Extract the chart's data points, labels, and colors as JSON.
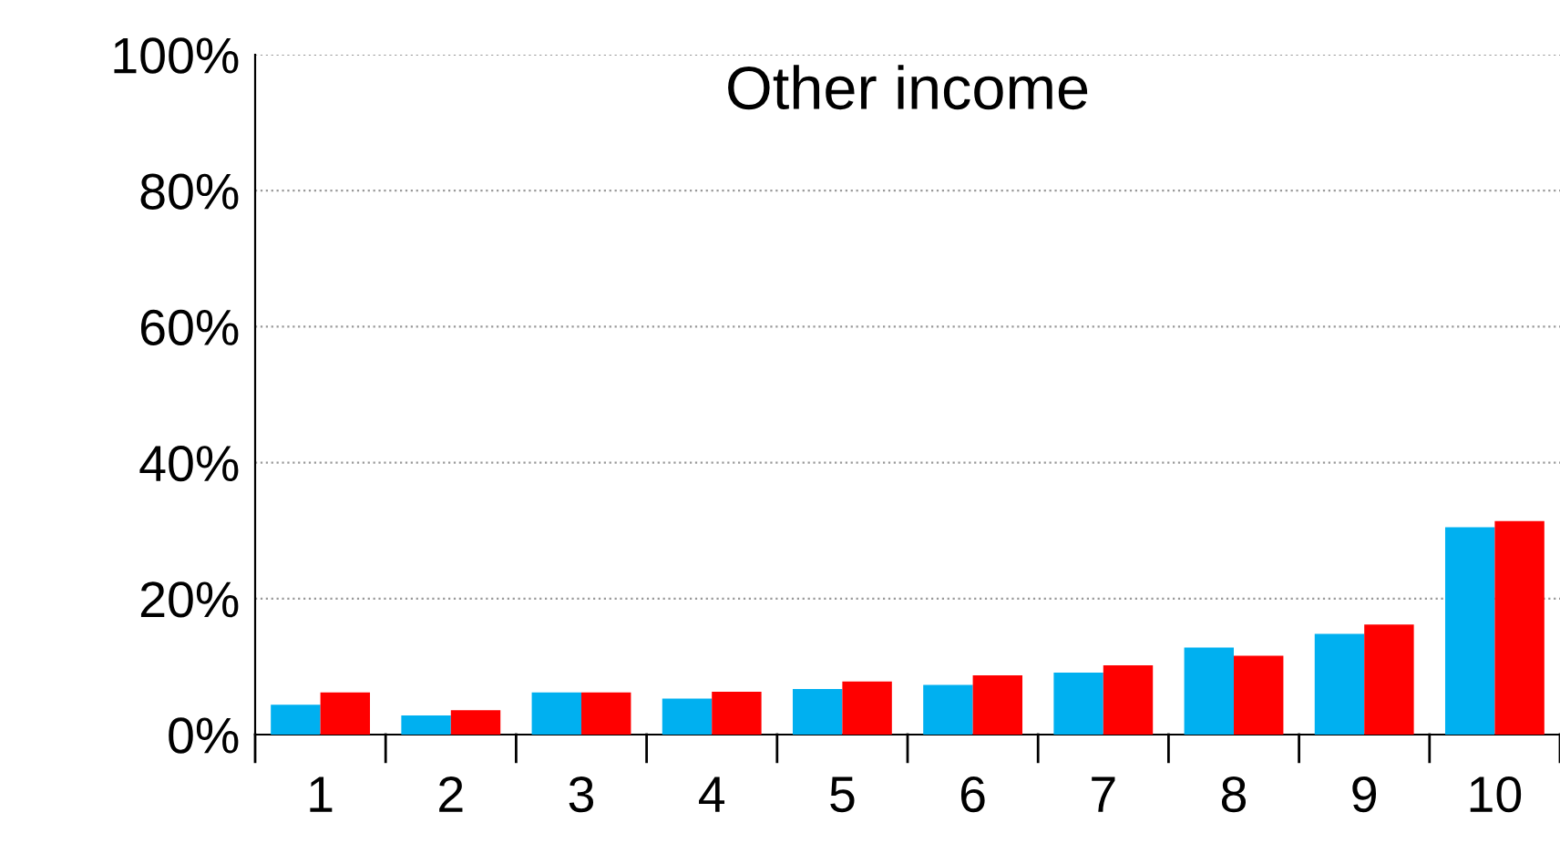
{
  "chart_data": {
    "type": "bar",
    "title": "Other income",
    "categories": [
      "1",
      "2",
      "3",
      "4",
      "5",
      "6",
      "7",
      "8",
      "9",
      "10"
    ],
    "series": [
      {
        "color": "#00b0f0",
        "values": [
          4.4,
          2.8,
          6.2,
          5.3,
          6.7,
          7.3,
          9.1,
          12.8,
          14.8,
          30.5
        ]
      },
      {
        "color": "#ff0000",
        "values": [
          6.2,
          3.6,
          6.2,
          6.3,
          7.8,
          8.7,
          10.2,
          11.6,
          16.2,
          31.4
        ]
      }
    ],
    "ylim": [
      0,
      100
    ],
    "yticks": [
      {
        "value": 0,
        "label": "0%"
      },
      {
        "value": 20,
        "label": "20%"
      },
      {
        "value": 40,
        "label": "40%"
      },
      {
        "value": 60,
        "label": "60%"
      },
      {
        "value": 80,
        "label": "80%"
      },
      {
        "value": 100,
        "label": "100%"
      }
    ],
    "grid": "y"
  }
}
